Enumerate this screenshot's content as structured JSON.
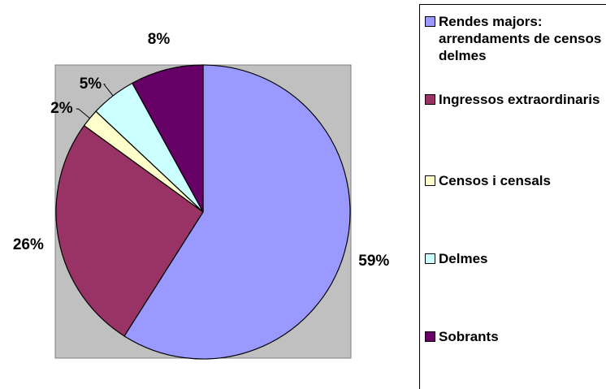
{
  "chart_data": {
    "type": "pie",
    "categories": [
      "Rendes majors: arrendaments de censos i delmes",
      "Ingressos extraordinaris",
      "Censos i censals",
      "Delmes",
      "Sobrants"
    ],
    "values": [
      59,
      26,
      2,
      5,
      8
    ],
    "value_labels": [
      "59%",
      "26%",
      "2%",
      "5%",
      "8%"
    ],
    "colors": [
      "#9999ff",
      "#993366",
      "#ffffcc",
      "#ccffff",
      "#660066"
    ],
    "legend": "right"
  }
}
